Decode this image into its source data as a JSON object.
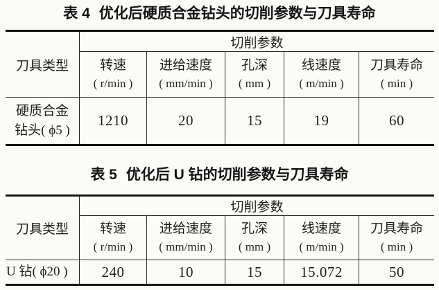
{
  "page": {
    "background": "#fbfbf8",
    "text_color": "#1a1a1a"
  },
  "tables": [
    {
      "title_label": "表 4",
      "title_text": "优化后硬质合金钻头的切削参数与刀具寿命",
      "corner_header": "刀具类型",
      "group_header": "切削参数",
      "columns": [
        {
          "name": "转速",
          "unit": "( r/min )"
        },
        {
          "name": "进给速度",
          "unit": "( mm/min )"
        },
        {
          "name": "孔深",
          "unit": "( mm )"
        },
        {
          "name": "线速度",
          "unit": "( m/min )"
        },
        {
          "name": "刀具寿命",
          "unit": "( min )"
        }
      ],
      "row": {
        "tool_lines": [
          "硬质合金",
          "钻头( ϕ5 )"
        ],
        "values": [
          "1210",
          "20",
          "15",
          "19",
          "60"
        ]
      }
    },
    {
      "title_label": "表 5",
      "title_text": "优化后 U 钻的切削参数与刀具寿命",
      "corner_header": "刀具类型",
      "group_header": "切削参数",
      "columns": [
        {
          "name": "转速",
          "unit": "( r/min )"
        },
        {
          "name": "进给速度",
          "unit": "( mm/min )"
        },
        {
          "name": "孔深",
          "unit": "( mm )"
        },
        {
          "name": "线速度",
          "unit": "( m/min )"
        },
        {
          "name": "刀具寿命",
          "unit": "( min )"
        }
      ],
      "row": {
        "tool_lines": [
          "U 钻( ϕ20 )"
        ],
        "values": [
          "240",
          "10",
          "15",
          "15.072",
          "50"
        ]
      }
    }
  ]
}
